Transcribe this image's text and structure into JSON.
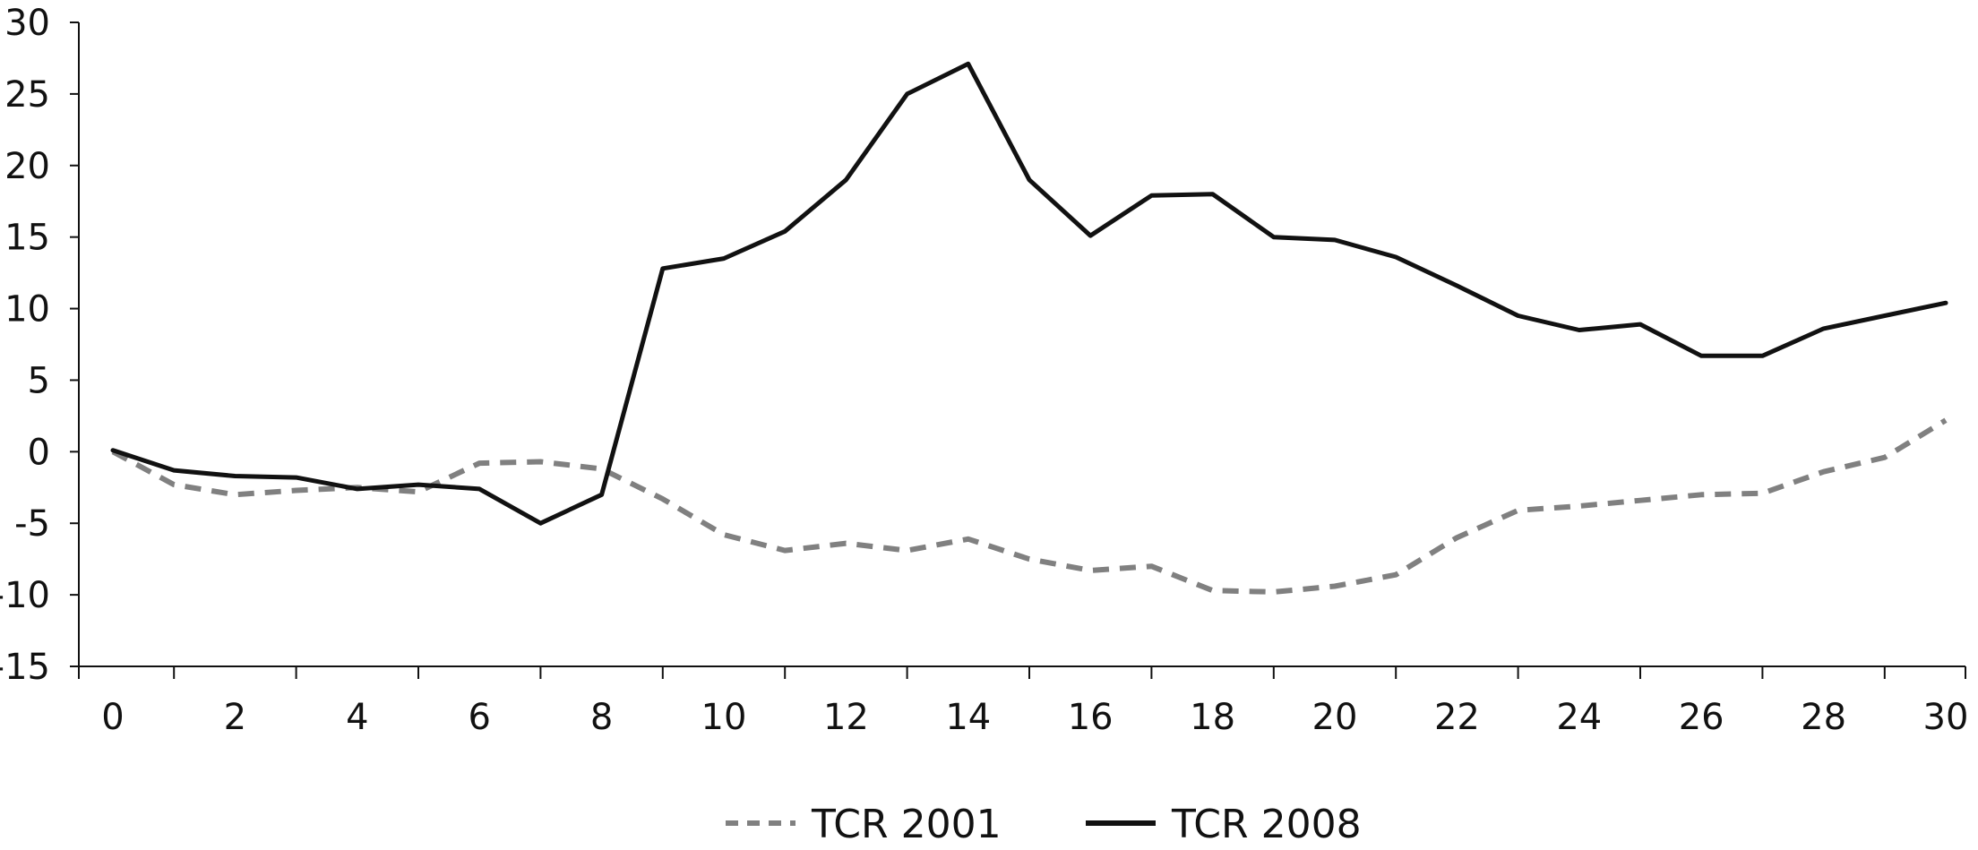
{
  "chart_data": {
    "type": "line",
    "title": "",
    "xlabel": "",
    "ylabel": "",
    "xlim": [
      0,
      30
    ],
    "ylim": [
      -15,
      30
    ],
    "grid": false,
    "legend_position": "bottom",
    "x_ticks": [
      0,
      2,
      4,
      6,
      8,
      10,
      12,
      14,
      16,
      18,
      20,
      22,
      24,
      26,
      28,
      30
    ],
    "y_ticks": [
      30,
      25,
      20,
      15,
      10,
      5,
      0,
      -5,
      -10,
      -15
    ],
    "x": [
      0,
      1,
      2,
      3,
      4,
      5,
      6,
      7,
      8,
      9,
      10,
      11,
      12,
      13,
      14,
      15,
      16,
      17,
      18,
      19,
      20,
      21,
      22,
      23,
      24,
      25,
      26,
      27,
      28,
      29,
      30
    ],
    "series": [
      {
        "name": "TCR 2001",
        "style": "dashed",
        "color": "#808080",
        "values": [
          0,
          -2.3,
          -3,
          -2.7,
          -2.5,
          -2.8,
          -0.8,
          -0.7,
          -1.2,
          -3.3,
          -5.8,
          -6.9,
          -6.4,
          -6.9,
          -6.1,
          -7.5,
          -8.3,
          -8.0,
          -9.7,
          -9.8,
          -9.4,
          -8.6,
          -6.0,
          -4.1,
          -3.8,
          -3.4,
          -3.0,
          -2.9,
          -1.4,
          -0.4,
          2.2
        ]
      },
      {
        "name": "TCR 2008",
        "style": "solid",
        "color": "#111111",
        "values": [
          0.1,
          -1.3,
          -1.7,
          -1.8,
          -2.6,
          -2.3,
          -2.6,
          -5.0,
          -3.0,
          12.8,
          13.5,
          15.4,
          19.0,
          25.0,
          27.1,
          19.0,
          15.1,
          17.9,
          18.0,
          15.0,
          14.8,
          13.6,
          11.6,
          9.5,
          8.5,
          8.9,
          6.7,
          6.7,
          8.6,
          9.5,
          10.4
        ]
      }
    ]
  }
}
